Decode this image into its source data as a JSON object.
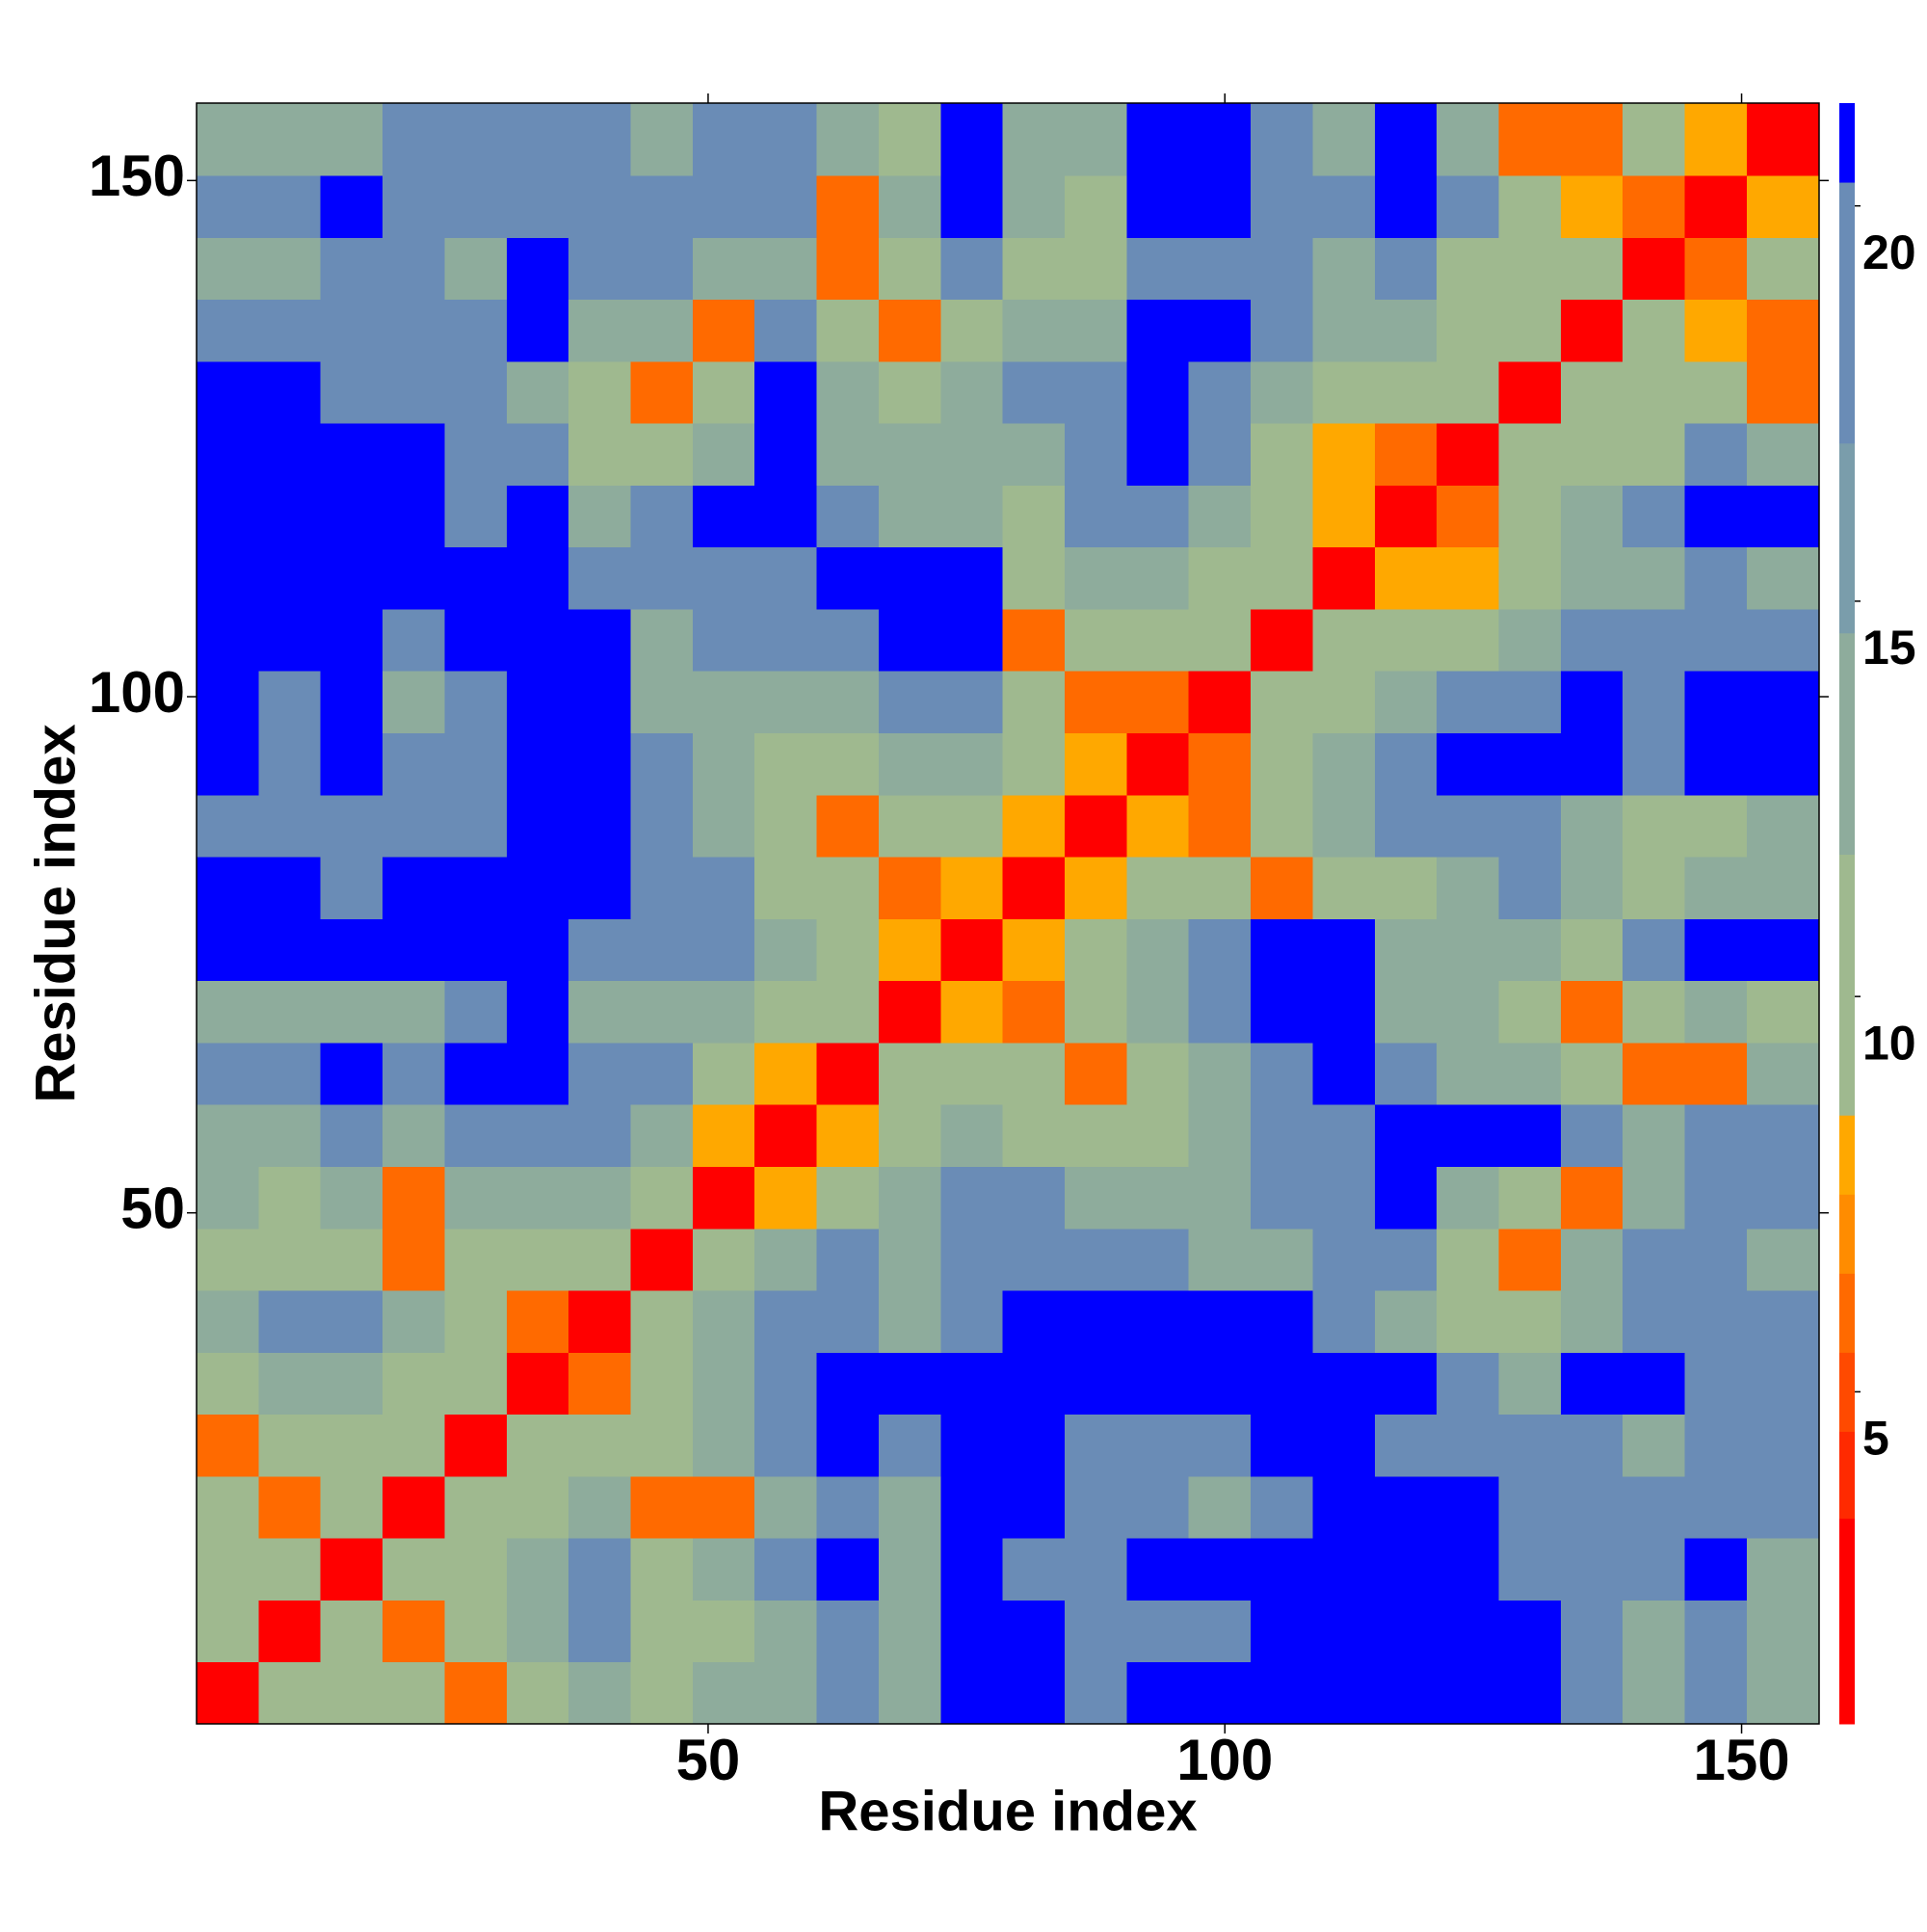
{
  "chart_data": {
    "type": "heatmap",
    "x_label": "Residue index",
    "y_label": "Residue index",
    "xlim": [
      0.5,
      157.5
    ],
    "ylim": [
      0.5,
      157.5
    ],
    "xticks": [
      50,
      100,
      150
    ],
    "yticks": [
      50,
      100,
      150
    ],
    "x_edges": [
      0.5,
      6.5,
      12.5,
      18.5,
      24.5,
      30.5,
      36.5,
      42.5,
      48.5,
      54.5,
      60.5,
      66.5,
      72.5,
      78.5,
      84.5,
      90.5,
      96.5,
      102.5,
      108.5,
      114.5,
      120.5,
      126.5,
      132.5,
      138.5,
      144.5,
      150.5,
      157.5
    ],
    "y_edges": [
      0.5,
      6.5,
      12.5,
      18.5,
      24.5,
      30.5,
      36.5,
      42.5,
      48.5,
      54.5,
      60.5,
      66.5,
      72.5,
      78.5,
      84.5,
      90.5,
      96.5,
      102.5,
      108.5,
      114.5,
      120.5,
      126.5,
      132.5,
      138.5,
      144.5,
      150.5,
      157.5
    ],
    "z": [
      [
        3,
        9,
        10,
        10,
        6,
        10,
        14,
        10,
        12,
        14,
        18,
        14,
        21,
        21,
        18,
        21,
        21,
        21,
        21,
        21,
        21,
        21,
        18,
        14,
        18,
        14
      ],
      [
        9,
        3,
        9,
        6,
        10,
        14,
        18,
        10,
        10,
        14,
        18,
        14,
        21,
        21,
        18,
        18,
        18,
        21,
        21,
        21,
        21,
        21,
        18,
        14,
        18,
        14
      ],
      [
        10,
        9,
        3,
        9,
        10,
        14,
        18,
        10,
        14,
        18,
        21,
        14,
        21,
        18,
        18,
        21,
        21,
        21,
        21,
        21,
        21,
        18,
        18,
        18,
        21,
        14
      ],
      [
        10,
        6,
        9,
        3,
        9,
        10,
        14,
        6,
        6,
        14,
        18,
        14,
        21,
        21,
        18,
        18,
        14,
        18,
        21,
        21,
        21,
        18,
        18,
        18,
        18,
        18
      ],
      [
        6,
        10,
        10,
        9,
        3,
        9,
        10,
        10,
        14,
        18,
        21,
        18,
        21,
        21,
        18,
        18,
        18,
        21,
        21,
        18,
        18,
        18,
        18,
        14,
        18,
        18
      ],
      [
        10,
        14,
        14,
        10,
        9,
        3,
        6,
        10,
        14,
        18,
        21,
        21,
        21,
        21,
        21,
        21,
        21,
        21,
        21,
        21,
        18,
        14,
        21,
        21,
        18,
        18
      ],
      [
        14,
        18,
        18,
        14,
        10,
        6,
        3,
        9,
        14,
        18,
        18,
        14,
        18,
        21,
        21,
        21,
        21,
        21,
        18,
        14,
        10,
        10,
        14,
        18,
        18,
        18
      ],
      [
        10,
        10,
        10,
        6,
        10,
        10,
        9,
        3,
        9,
        14,
        18,
        14,
        18,
        18,
        18,
        18,
        14,
        14,
        18,
        18,
        10,
        6,
        14,
        18,
        18,
        14
      ],
      [
        12,
        10,
        14,
        6,
        14,
        14,
        14,
        9,
        3,
        8,
        10,
        14,
        18,
        18,
        14,
        14,
        14,
        18,
        18,
        21,
        14,
        10,
        6,
        14,
        18,
        18
      ],
      [
        14,
        14,
        18,
        14,
        18,
        18,
        18,
        14,
        8,
        3,
        8,
        10,
        14,
        10,
        10,
        10,
        14,
        18,
        18,
        21,
        21,
        21,
        18,
        14,
        18,
        18
      ],
      [
        18,
        18,
        21,
        18,
        21,
        21,
        18,
        18,
        10,
        8,
        3,
        9,
        10,
        10,
        6,
        10,
        14,
        18,
        21,
        18,
        14,
        14,
        10,
        6,
        6,
        14
      ],
      [
        14,
        14,
        14,
        14,
        18,
        21,
        14,
        14,
        14,
        10,
        9,
        3,
        8,
        6,
        10,
        14,
        18,
        21,
        21,
        14,
        14,
        10,
        6,
        10,
        14,
        10
      ],
      [
        21,
        21,
        21,
        21,
        21,
        21,
        18,
        18,
        18,
        14,
        10,
        8,
        3,
        8,
        10,
        14,
        18,
        21,
        21,
        14,
        14,
        14,
        10,
        18,
        21,
        21
      ],
      [
        21,
        21,
        18,
        21,
        21,
        21,
        21,
        18,
        18,
        10,
        10,
        6,
        8,
        3,
        8,
        10,
        10,
        6,
        10,
        10,
        14,
        18,
        14,
        10,
        14,
        14
      ],
      [
        18,
        18,
        18,
        18,
        18,
        21,
        21,
        18,
        14,
        10,
        6,
        10,
        10,
        8,
        3,
        8,
        6,
        10,
        14,
        18,
        18,
        18,
        14,
        10,
        10,
        14
      ],
      [
        21,
        18,
        21,
        18,
        18,
        21,
        21,
        18,
        14,
        10,
        10,
        14,
        14,
        10,
        8,
        3,
        6,
        10,
        14,
        18,
        21,
        21,
        21,
        18,
        21,
        21
      ],
      [
        21,
        18,
        21,
        14,
        18,
        21,
        21,
        14,
        14,
        14,
        14,
        18,
        18,
        10,
        6,
        6,
        3,
        9,
        10,
        14,
        18,
        18,
        21,
        18,
        21,
        21
      ],
      [
        21,
        21,
        21,
        18,
        21,
        21,
        21,
        14,
        18,
        18,
        18,
        21,
        21,
        6,
        10,
        10,
        9,
        3,
        9,
        10,
        10,
        14,
        18,
        18,
        18,
        18
      ],
      [
        21,
        21,
        21,
        21,
        21,
        21,
        18,
        18,
        18,
        18,
        21,
        21,
        21,
        10,
        14,
        14,
        10,
        9,
        3,
        8,
        8,
        10,
        14,
        14,
        18,
        14
      ],
      [
        21,
        21,
        21,
        21,
        18,
        21,
        14,
        18,
        21,
        21,
        18,
        14,
        14,
        10,
        18,
        18,
        14,
        10,
        8,
        3,
        6,
        10,
        14,
        18,
        21,
        21
      ],
      [
        21,
        21,
        21,
        21,
        18,
        18,
        10,
        10,
        14,
        21,
        14,
        14,
        14,
        14,
        18,
        21,
        18,
        10,
        8,
        6,
        3,
        9,
        10,
        10,
        18,
        14
      ],
      [
        21,
        21,
        18,
        18,
        18,
        14,
        10,
        6,
        10,
        21,
        14,
        10,
        14,
        18,
        18,
        21,
        18,
        14,
        10,
        10,
        9,
        3,
        9,
        10,
        10,
        6
      ],
      [
        18,
        18,
        18,
        18,
        18,
        21,
        14,
        14,
        6,
        18,
        10,
        6,
        10,
        14,
        14,
        21,
        21,
        18,
        14,
        14,
        10,
        9,
        3,
        9,
        8,
        6
      ],
      [
        14,
        14,
        18,
        18,
        14,
        21,
        18,
        18,
        14,
        14,
        6,
        10,
        18,
        10,
        10,
        18,
        18,
        18,
        14,
        18,
        10,
        10,
        9,
        3,
        6,
        10
      ],
      [
        18,
        18,
        21,
        18,
        18,
        18,
        18,
        18,
        18,
        18,
        6,
        14,
        21,
        14,
        10,
        21,
        21,
        18,
        18,
        21,
        18,
        10,
        8,
        6,
        3,
        8
      ],
      [
        14,
        14,
        14,
        18,
        18,
        18,
        18,
        14,
        18,
        18,
        14,
        10,
        21,
        14,
        14,
        21,
        21,
        18,
        14,
        21,
        14,
        6,
        6,
        10,
        8,
        3
      ]
    ],
    "colorbar": {
      "levels": [
        0.8,
        3.4,
        4.5,
        5.5,
        6.5,
        7.5,
        8.5,
        11.8,
        14.6,
        17,
        20.3,
        21.3
      ],
      "colors": [
        "#ff0000",
        "#ff2a00",
        "#ff4a00",
        "#ff6a00",
        "#ff8c00",
        "#ffa800",
        "#9fb98f",
        "#8eac9c",
        "#7a9dab",
        "#6a8cb6",
        "#0000ff"
      ],
      "ticks": [
        5,
        10,
        15,
        20
      ]
    }
  }
}
